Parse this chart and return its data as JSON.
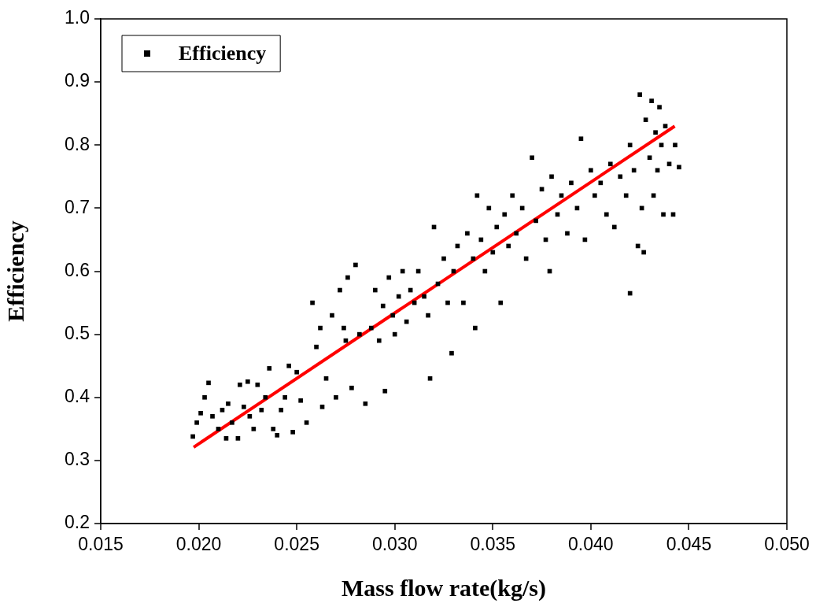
{
  "chart_data": {
    "type": "scatter",
    "xlabel": "Mass flow rate(kg/s)",
    "ylabel": "Efficiency",
    "xlim": [
      0.015,
      0.05
    ],
    "xticks": [
      0.015,
      {
        "value": 0.02,
        "label": "0.020"
      },
      0.025,
      {
        "value": 0.03,
        "label": "0.030"
      },
      0.035,
      {
        "value": 0.04,
        "label": "0.040"
      },
      0.045,
      {
        "value": 0.05,
        "label": "0.050"
      }
    ],
    "ylim": [
      0.2,
      1.0
    ],
    "yticks": [
      {
        "value": 0.2,
        "label": "0.2"
      },
      {
        "value": 0.3,
        "label": "0.3"
      },
      {
        "value": 0.4,
        "label": "0.4"
      },
      {
        "value": 0.5,
        "label": "0.5"
      },
      {
        "value": 0.6,
        "label": "0.6"
      },
      {
        "value": 0.7,
        "label": "0.7"
      },
      {
        "value": 0.8,
        "label": "0.8"
      },
      {
        "value": 0.9,
        "label": "0.9"
      },
      {
        "value": 1.0,
        "label": "1.0"
      }
    ],
    "grid": false,
    "legend": "top left",
    "series": [
      {
        "name": "Efficiency",
        "marker": "square",
        "color": "#000000",
        "x": [
          0.0197,
          0.0199,
          0.0201,
          0.0203,
          0.0205,
          0.0207,
          0.021,
          0.0212,
          0.0214,
          0.0215,
          0.0217,
          0.022,
          0.0221,
          0.0223,
          0.0225,
          0.0226,
          0.0228,
          0.023,
          0.0232,
          0.0234,
          0.0236,
          0.0238,
          0.024,
          0.0242,
          0.0244,
          0.0246,
          0.0248,
          0.025,
          0.0252,
          0.0255,
          0.0258,
          0.026,
          0.0262,
          0.0263,
          0.0265,
          0.0268,
          0.027,
          0.0272,
          0.0274,
          0.0275,
          0.0276,
          0.0278,
          0.028,
          0.0282,
          0.0285,
          0.0288,
          0.029,
          0.0292,
          0.0294,
          0.0295,
          0.0297,
          0.0299,
          0.03,
          0.0302,
          0.0304,
          0.0306,
          0.0308,
          0.031,
          0.0312,
          0.0315,
          0.0317,
          0.0318,
          0.032,
          0.0322,
          0.0325,
          0.0327,
          0.0329,
          0.033,
          0.0332,
          0.0335,
          0.0337,
          0.034,
          0.0341,
          0.0342,
          0.0344,
          0.0346,
          0.0348,
          0.035,
          0.0352,
          0.0354,
          0.0356,
          0.0358,
          0.036,
          0.0362,
          0.0365,
          0.0367,
          0.037,
          0.0372,
          0.0375,
          0.0377,
          0.0379,
          0.038,
          0.0383,
          0.0385,
          0.0388,
          0.039,
          0.0393,
          0.0395,
          0.0397,
          0.04,
          0.0402,
          0.0405,
          0.0408,
          0.041,
          0.0412,
          0.0415,
          0.0418,
          0.042,
          0.042,
          0.0422,
          0.0424,
          0.0425,
          0.0426,
          0.0427,
          0.0428,
          0.043,
          0.0431,
          0.0432,
          0.0433,
          0.0434,
          0.0435,
          0.0436,
          0.0437,
          0.0438,
          0.044,
          0.0442,
          0.0443,
          0.0445
        ],
        "values": [
          0.338,
          0.36,
          0.375,
          0.4,
          0.423,
          0.37,
          0.35,
          0.38,
          0.335,
          0.39,
          0.36,
          0.335,
          0.42,
          0.385,
          0.425,
          0.37,
          0.35,
          0.42,
          0.38,
          0.4,
          0.446,
          0.35,
          0.34,
          0.38,
          0.4,
          0.45,
          0.345,
          0.44,
          0.395,
          0.36,
          0.55,
          0.48,
          0.51,
          0.385,
          0.43,
          0.53,
          0.4,
          0.57,
          0.51,
          0.49,
          0.59,
          0.415,
          0.61,
          0.5,
          0.39,
          0.51,
          0.57,
          0.49,
          0.545,
          0.41,
          0.59,
          0.53,
          0.5,
          0.56,
          0.6,
          0.52,
          0.57,
          0.55,
          0.6,
          0.56,
          0.53,
          0.43,
          0.67,
          0.58,
          0.62,
          0.55,
          0.47,
          0.6,
          0.64,
          0.55,
          0.66,
          0.62,
          0.51,
          0.72,
          0.65,
          0.6,
          0.7,
          0.63,
          0.67,
          0.55,
          0.69,
          0.64,
          0.72,
          0.66,
          0.7,
          0.62,
          0.78,
          0.68,
          0.73,
          0.65,
          0.6,
          0.75,
          0.69,
          0.72,
          0.66,
          0.74,
          0.7,
          0.81,
          0.65,
          0.76,
          0.72,
          0.74,
          0.69,
          0.77,
          0.67,
          0.75,
          0.72,
          0.565,
          0.8,
          0.76,
          0.64,
          0.88,
          0.7,
          0.63,
          0.84,
          0.78,
          0.87,
          0.72,
          0.82,
          0.76,
          0.86,
          0.8,
          0.69,
          0.83,
          0.77,
          0.69,
          0.8,
          0.765
        ]
      },
      {
        "type": "line",
        "marker": "none",
        "color": "#ff0000",
        "x": [
          0.01974,
          0.04428
        ],
        "values": [
          0.321,
          0.83
        ]
      }
    ]
  }
}
